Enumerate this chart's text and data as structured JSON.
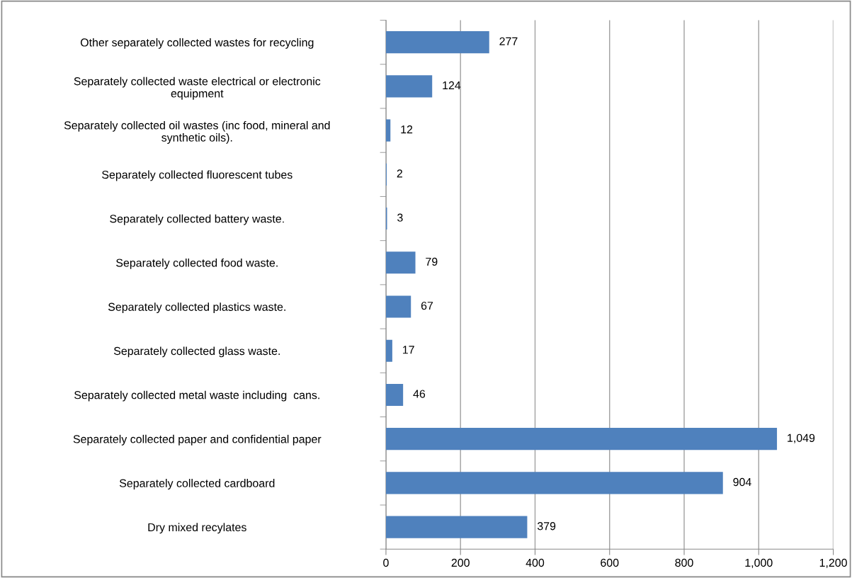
{
  "chart_data": {
    "type": "bar",
    "orientation": "horizontal",
    "categories": [
      "Other separately collected wastes for recycling",
      "Separately collected waste electrical or electronic\nequipment",
      "Separately collected oil wastes (inc food, mineral and\nsynthetic oils).",
      "Separately collected fluorescent tubes",
      "Separately collected battery waste.",
      "Separately collected food waste.",
      "Separately collected plastics waste.",
      "Separately collected glass waste.",
      "Separately collected metal waste including  cans.",
      "Separately collected paper and confidential paper",
      "Separately collected cardboard",
      "Dry mixed recylates"
    ],
    "values": [
      277,
      124,
      12,
      2,
      3,
      79,
      67,
      17,
      46,
      1049,
      904,
      379
    ],
    "value_labels": [
      "277",
      "124",
      "12",
      "2",
      "3",
      "79",
      "67",
      "17",
      "46",
      "1,049",
      "904",
      "379"
    ],
    "color": "#4f81bd",
    "xlim": [
      0,
      1200
    ],
    "xticks": [
      0,
      200,
      400,
      600,
      800,
      {
        "value": 1000,
        "label": "1,000"
      },
      {
        "value": 1200,
        "label": "1,200"
      }
    ],
    "grid": "x",
    "legend": false
  }
}
